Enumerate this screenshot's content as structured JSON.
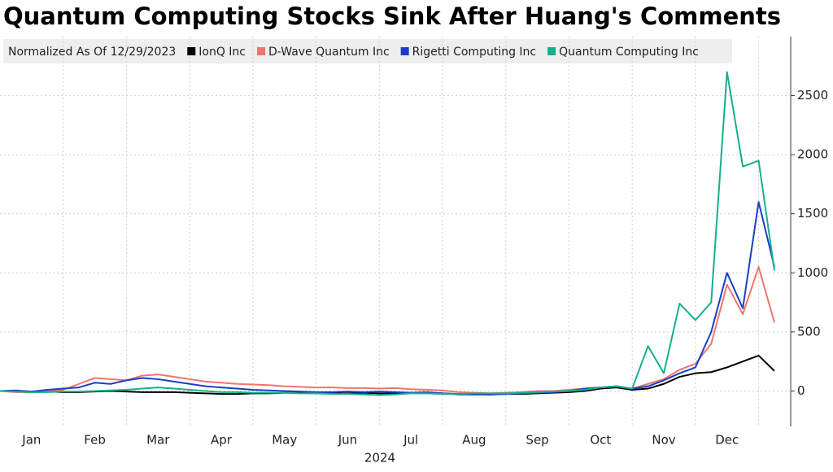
{
  "chart_data": {
    "type": "line",
    "title": "Quantum Computing Stocks Sink After Huang's Comments",
    "legend_title": "Normalized As Of 12/29/2023",
    "x_label": "2024",
    "categories": [
      null,
      null,
      "Jan",
      null,
      null,
      null,
      "Feb",
      null,
      null,
      null,
      "Mar",
      null,
      null,
      null,
      "Apr",
      null,
      null,
      null,
      "May",
      null,
      null,
      null,
      "Jun",
      null,
      null,
      null,
      "Jul",
      null,
      null,
      null,
      "Aug",
      null,
      null,
      null,
      "Sep",
      null,
      null,
      null,
      "Oct",
      null,
      null,
      null,
      "Nov",
      null,
      null,
      null,
      "Dec",
      null,
      null,
      null
    ],
    "series": [
      {
        "name": "IonQ Inc",
        "color": "#000000",
        "values": [
          0,
          0,
          -5,
          -5,
          -10,
          -10,
          -5,
          0,
          -5,
          -10,
          -10,
          -10,
          -15,
          -20,
          -25,
          -25,
          -20,
          -20,
          -15,
          -15,
          -20,
          -20,
          -20,
          -15,
          -20,
          -20,
          -15,
          -15,
          -20,
          -25,
          -30,
          -30,
          -25,
          -25,
          -20,
          -15,
          -10,
          0,
          20,
          30,
          10,
          20,
          60,
          120,
          150,
          160,
          200,
          250,
          300,
          170
        ]
      },
      {
        "name": "D-Wave Quantum Inc",
        "color": "#f07470",
        "values": [
          0,
          -10,
          -10,
          -5,
          10,
          60,
          110,
          100,
          90,
          130,
          140,
          120,
          100,
          80,
          70,
          60,
          55,
          50,
          40,
          35,
          30,
          30,
          25,
          25,
          20,
          25,
          15,
          10,
          5,
          -10,
          -15,
          -20,
          -15,
          -10,
          0,
          0,
          10,
          20,
          30,
          40,
          20,
          60,
          100,
          180,
          230,
          400,
          900,
          650,
          1050,
          580
        ]
      },
      {
        "name": "Rigetti Computing Inc",
        "color": "#1a3fc4",
        "values": [
          0,
          5,
          -5,
          10,
          20,
          30,
          70,
          60,
          90,
          110,
          100,
          80,
          60,
          40,
          30,
          20,
          10,
          5,
          0,
          -5,
          -10,
          -10,
          -5,
          -10,
          -5,
          -10,
          -15,
          -10,
          -20,
          -30,
          -30,
          -25,
          -25,
          -20,
          -15,
          -10,
          0,
          20,
          30,
          40,
          20,
          40,
          90,
          150,
          200,
          500,
          1000,
          700,
          1600,
          1050
        ]
      },
      {
        "name": "Quantum Computing Inc",
        "color": "#13b08e",
        "values": [
          0,
          -5,
          -10,
          -10,
          -5,
          -5,
          0,
          5,
          10,
          20,
          30,
          20,
          10,
          0,
          -10,
          -10,
          -15,
          -15,
          -15,
          -20,
          -20,
          -25,
          -25,
          -30,
          -35,
          -30,
          -20,
          -20,
          -25,
          -25,
          -20,
          -20,
          -20,
          -15,
          -10,
          -5,
          0,
          10,
          30,
          40,
          20,
          380,
          150,
          740,
          600,
          750,
          2700,
          1900,
          1950,
          1020
        ]
      }
    ],
    "ylim": [
      -300,
      3000
    ],
    "yticks": [
      0,
      500,
      1000,
      1500,
      2000,
      2500
    ],
    "grid": true
  }
}
